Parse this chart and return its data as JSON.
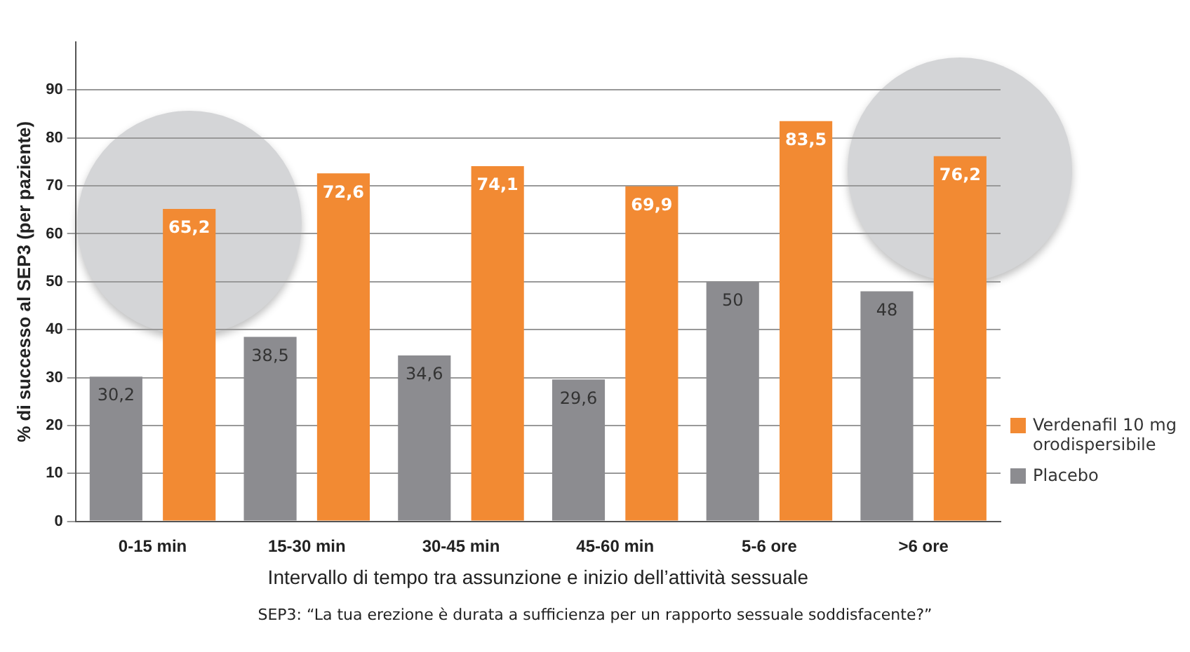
{
  "chart_data": {
    "type": "bar",
    "categories": [
      "0-15 min",
      "15-30 min",
      "30-45 min",
      "45-60 min",
      "5-6 ore",
      ">6 ore"
    ],
    "series": [
      {
        "name": "Placebo",
        "color": "#8c8c90",
        "values": [
          30.2,
          38.5,
          34.6,
          29.6,
          50,
          48
        ],
        "value_labels": [
          "30,2",
          "38,5",
          "34,6",
          "29,6",
          "50",
          "48"
        ]
      },
      {
        "name": "Verdenafil 10 mg orodispersibile",
        "color": "#f28a33",
        "values": [
          65.2,
          72.6,
          74.1,
          69.9,
          83.5,
          76.2
        ],
        "value_labels": [
          "65,2",
          "72,6",
          "74,1",
          "69,9",
          "83,5",
          "76,2"
        ]
      }
    ],
    "xlabel": "Intervallo di tempo tra assunzione e inizio dell’attività sessuale",
    "ylabel": "% di successo al SEP3 (per paziente)",
    "ylim": [
      0,
      100
    ],
    "yticks": [
      0,
      10,
      20,
      30,
      40,
      50,
      60,
      70,
      80,
      90
    ],
    "grid": "y",
    "legend": "bottom right",
    "annotations": [
      "SEP3: “La tua erezione è durata a sufficienza per un rapporto sessuale soddisfacente?”"
    ]
  }
}
